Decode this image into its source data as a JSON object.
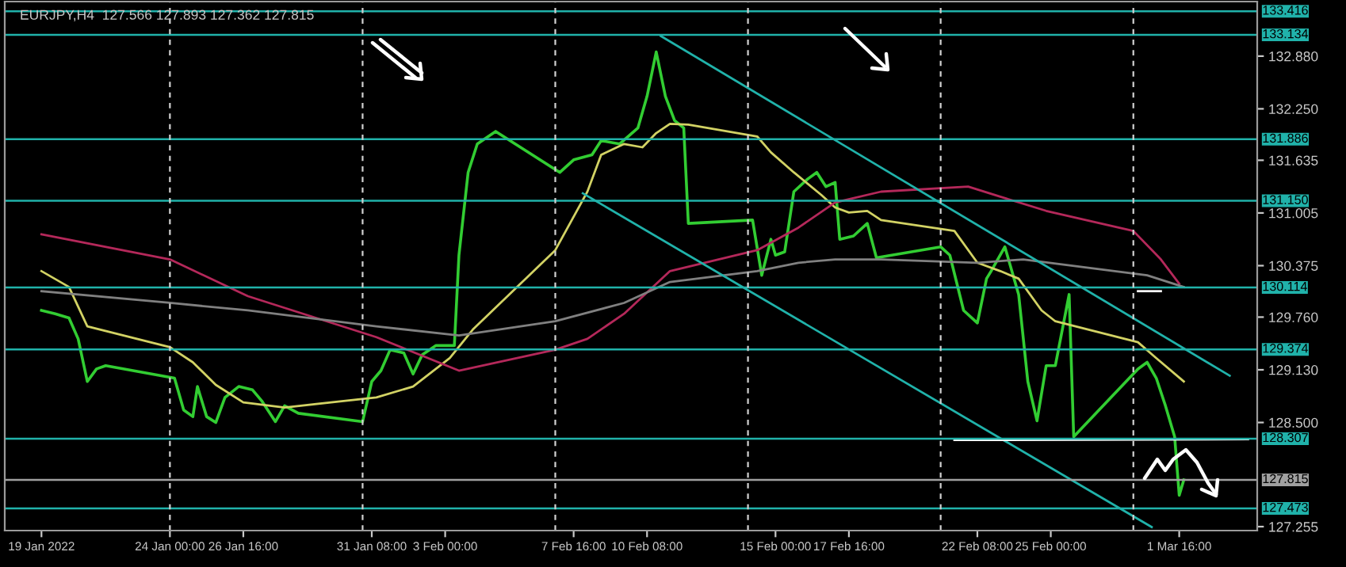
{
  "chart_data": {
    "type": "line",
    "title": "EURJPY,H4  127.566 127.893 127.362 127.815",
    "xlim": [
      "2022-01-18T00:00",
      "2022-03-04T12:00"
    ],
    "ylim": [
      127.208,
      133.532
    ],
    "xticks": [
      {
        "value": "2022-01-19T08:00",
        "label": "19 Jan 2022"
      },
      {
        "value": "2022-01-24T00:00",
        "label": "24 Jan 00:00"
      },
      {
        "value": "2022-01-26T16:00",
        "label": "26 Jan 16:00"
      },
      {
        "value": "2022-01-31T08:00",
        "label": "31 Jan 08:00"
      },
      {
        "value": "2022-02-03T00:00",
        "label": "3 Feb 00:00"
      },
      {
        "value": "2022-02-07T16:00",
        "label": "7 Feb 16:00"
      },
      {
        "value": "2022-02-10T08:00",
        "label": "10 Feb 08:00"
      },
      {
        "value": "2022-02-15T00:00",
        "label": "15 Feb 00:00"
      },
      {
        "value": "2022-02-17T16:00",
        "label": "17 Feb 16:00"
      },
      {
        "value": "2022-02-22T08:00",
        "label": "22 Feb 08:00"
      },
      {
        "value": "2022-02-25T00:00",
        "label": "25 Feb 00:00"
      },
      {
        "value": "2022-03-01T16:00",
        "label": "1 Mar 16:00"
      }
    ],
    "yticks": [
      {
        "value": 132.88,
        "label": "132.880"
      },
      {
        "value": 132.25,
        "label": "132.250"
      },
      {
        "value": 131.635,
        "label": "131.635"
      },
      {
        "value": 131.005,
        "label": "131.005"
      },
      {
        "value": 130.375,
        "label": "130.375"
      },
      {
        "value": 129.76,
        "label": "129.760"
      },
      {
        "value": 129.13,
        "label": "129.130"
      },
      {
        "value": 128.5,
        "label": "128.500"
      },
      {
        "value": 127.255,
        "label": "127.255"
      }
    ],
    "marker": "none",
    "series": [
      {
        "color": "#32cd32",
        "x": [
          "2022-01-19T08:00",
          "2022-01-19T20:00",
          "2022-01-20T08:00",
          "2022-01-20T16:00",
          "2022-01-21T00:00",
          "2022-01-21T08:00",
          "2022-01-21T16:00",
          "2022-01-24T04:00",
          "2022-01-24T12:00",
          "2022-01-24T20:00",
          "2022-01-25T00:00",
          "2022-01-25T08:00",
          "2022-01-25T16:00",
          "2022-01-26T00:00",
          "2022-01-26T12:00",
          "2022-01-27T00:00",
          "2022-01-27T08:00",
          "2022-01-27T20:00",
          "2022-01-28T04:00",
          "2022-01-28T16:00",
          "2022-01-31T00:00",
          "2022-01-31T08:00",
          "2022-01-31T16:00",
          "2022-02-01T00:00",
          "2022-02-01T12:00",
          "2022-02-01T20:00",
          "2022-02-02T04:00",
          "2022-02-02T16:00",
          "2022-02-03T08:00",
          "2022-02-03T12:00",
          "2022-02-03T20:00",
          "2022-02-04T04:00",
          "2022-02-04T20:00",
          "2022-02-07T04:00",
          "2022-02-07T16:00",
          "2022-02-08T08:00",
          "2022-02-08T16:00",
          "2022-02-09T08:00",
          "2022-02-10T00:00",
          "2022-02-10T08:00",
          "2022-02-10T16:00",
          "2022-02-11T00:00",
          "2022-02-11T08:00",
          "2022-02-11T16:00",
          "2022-02-11T20:00",
          "2022-02-14T04:00",
          "2022-02-14T12:00",
          "2022-02-14T20:00",
          "2022-02-15T00:00",
          "2022-02-15T08:00",
          "2022-02-15T16:00",
          "2022-02-16T04:00",
          "2022-02-16T12:00",
          "2022-02-16T20:00",
          "2022-02-17T04:00",
          "2022-02-17T08:00",
          "2022-02-17T20:00",
          "2022-02-18T08:00",
          "2022-02-18T16:00",
          "2022-02-21T00:00",
          "2022-02-21T08:00",
          "2022-02-21T20:00",
          "2022-02-22T08:00",
          "2022-02-22T16:00",
          "2022-02-22T20:00",
          "2022-02-23T08:00",
          "2022-02-23T20:00",
          "2022-02-24T04:00",
          "2022-02-24T12:00",
          "2022-02-24T20:00",
          "2022-02-25T04:00",
          "2022-02-25T16:00",
          "2022-02-25T20:00",
          "2022-02-28T04:00",
          "2022-02-28T12:00",
          "2022-02-28T20:00",
          "2022-03-01T04:00",
          "2022-03-01T12:00",
          "2022-03-01T16:00",
          "2022-03-01T20:00"
        ],
        "values": [
          129.84,
          129.8,
          129.75,
          129.5,
          128.99,
          129.14,
          129.18,
          129.03,
          128.65,
          128.57,
          128.93,
          128.57,
          128.5,
          128.8,
          128.93,
          128.89,
          128.76,
          128.51,
          128.7,
          128.61,
          128.51,
          128.99,
          129.12,
          129.37,
          129.33,
          129.08,
          129.31,
          129.42,
          129.42,
          130.5,
          131.49,
          131.83,
          131.98,
          131.49,
          131.64,
          131.7,
          131.87,
          131.83,
          132.02,
          132.4,
          132.93,
          132.4,
          132.11,
          132.02,
          130.88,
          130.92,
          130.26,
          130.69,
          130.5,
          130.54,
          131.26,
          131.41,
          131.49,
          131.32,
          131.37,
          130.69,
          130.73,
          130.88,
          130.47,
          130.6,
          130.5,
          129.84,
          129.69,
          130.22,
          130.31,
          130.6,
          130.03,
          128.99,
          128.52,
          129.18,
          129.18,
          130.03,
          128.33,
          129.14,
          129.22,
          129.03,
          128.7,
          128.33,
          127.63,
          127.815
        ]
      },
      {
        "color": "#d2d264",
        "x": [
          "2022-01-19T08:00",
          "2022-01-20T08:00",
          "2022-01-21T00:00",
          "2022-01-24T00:00",
          "2022-01-24T20:00",
          "2022-01-25T16:00",
          "2022-01-26T16:00",
          "2022-01-28T04:00",
          "2022-01-31T12:00",
          "2022-02-01T20:00",
          "2022-02-03T04:00",
          "2022-02-04T00:00",
          "2022-02-07T00:00",
          "2022-02-08T04:00",
          "2022-02-08T16:00",
          "2022-02-09T12:00",
          "2022-02-10T04:00",
          "2022-02-10T16:00",
          "2022-02-11T04:00",
          "2022-02-11T20:00",
          "2022-02-14T08:00",
          "2022-02-14T20:00",
          "2022-02-15T16:00",
          "2022-02-16T16:00",
          "2022-02-17T04:00",
          "2022-02-17T16:00",
          "2022-02-18T08:00",
          "2022-02-18T20:00",
          "2022-02-21T12:00",
          "2022-02-22T08:00",
          "2022-02-23T04:00",
          "2022-02-23T20:00",
          "2022-02-24T16:00",
          "2022-02-25T04:00",
          "2022-02-28T04:00",
          "2022-02-28T20:00",
          "2022-03-01T20:00"
        ],
        "values": [
          130.31,
          130.12,
          129.65,
          129.4,
          129.22,
          128.95,
          128.74,
          128.68,
          128.8,
          128.93,
          129.27,
          129.61,
          130.56,
          131.26,
          131.7,
          131.83,
          131.79,
          131.96,
          132.07,
          132.06,
          131.92,
          131.73,
          131.49,
          131.22,
          131.07,
          131.01,
          131.03,
          130.92,
          130.79,
          130.41,
          130.31,
          130.22,
          129.84,
          129.71,
          129.46,
          129.27,
          128.99
        ]
      },
      {
        "color": "#b4285a",
        "x": [
          "2022-01-19T08:00",
          "2022-01-24T00:00",
          "2022-01-26T20:00",
          "2022-01-31T12:00",
          "2022-02-03T12:00",
          "2022-02-07T00:00",
          "2022-02-08T04:00",
          "2022-02-09T12:00",
          "2022-02-11T04:00",
          "2022-02-14T08:00",
          "2022-02-15T20:00",
          "2022-02-17T04:00",
          "2022-02-18T20:00",
          "2022-02-22T00:00",
          "2022-02-23T04:00",
          "2022-02-24T20:00",
          "2022-02-28T00:00",
          "2022-03-01T00:00",
          "2022-03-01T16:00"
        ],
        "values": [
          130.75,
          130.45,
          130.01,
          129.52,
          129.12,
          129.37,
          129.5,
          129.8,
          130.31,
          130.56,
          130.83,
          131.13,
          131.26,
          131.32,
          131.2,
          131.03,
          130.79,
          130.45,
          130.16
        ]
      },
      {
        "color": "#808080",
        "x": [
          "2022-01-19T08:00",
          "2022-01-24T00:00",
          "2022-01-26T20:00",
          "2022-01-31T12:00",
          "2022-02-03T12:00",
          "2022-02-07T00:00",
          "2022-02-09T12:00",
          "2022-02-11T04:00",
          "2022-02-14T08:00",
          "2022-02-15T20:00",
          "2022-02-17T04:00",
          "2022-02-18T20:00",
          "2022-02-22T08:00",
          "2022-02-24T00:00",
          "2022-02-28T12:00",
          "2022-03-01T20:00"
        ],
        "values": [
          130.07,
          129.93,
          129.84,
          129.65,
          129.54,
          129.71,
          129.93,
          130.18,
          130.31,
          130.41,
          130.45,
          130.45,
          130.41,
          130.45,
          130.26,
          130.12
        ]
      },
      {
        "color": "#20b2aa",
        "x": [
          "2022-02-10T20:00",
          "2022-03-03T12:00"
        ],
        "values": [
          133.12,
          129.06
        ]
      },
      {
        "color": "#20b2aa",
        "x": [
          "2022-02-08T00:00",
          "2022-02-28T16:00"
        ],
        "values": [
          131.24,
          127.25
        ]
      },
      {
        "color": "#ffffff",
        "x": [
          "2022-02-21T12:00",
          "2022-03-04T04:00"
        ],
        "values": [
          128.29,
          128.3
        ]
      },
      {
        "color": "#ffffff",
        "x": [
          "2022-02-28T04:00",
          "2022-03-01T00:00"
        ],
        "values": [
          130.07,
          130.07
        ]
      }
    ],
    "ref_lines": [
      {
        "axis": "y",
        "value": 133.416,
        "label": "133.416",
        "color": "#20b2aa"
      },
      {
        "axis": "y",
        "value": 133.134,
        "label": "133.134",
        "color": "#20b2aa"
      },
      {
        "axis": "y",
        "value": 131.886,
        "label": "131.886",
        "color": "#20b2aa"
      },
      {
        "axis": "y",
        "value": 131.15,
        "label": "131.150",
        "color": "#20b2aa"
      },
      {
        "axis": "y",
        "value": 130.114,
        "label": "130.114",
        "color": "#20b2aa"
      },
      {
        "axis": "y",
        "value": 129.374,
        "label": "129.374",
        "color": "#20b2aa"
      },
      {
        "axis": "y",
        "value": 128.307,
        "label": "128.307",
        "color": "#20b2aa"
      },
      {
        "axis": "y",
        "value": 127.815,
        "label": "127.815",
        "color": "#a0a0a0"
      },
      {
        "axis": "y",
        "value": 127.473,
        "label": "127.473",
        "color": "#20b2aa"
      },
      {
        "axis": "x",
        "value": "2022-01-24T00:00",
        "color": "#d0d0d0",
        "line_style": "dashed"
      },
      {
        "axis": "x",
        "value": "2022-01-31T00:00",
        "color": "#d0d0d0",
        "line_style": "dashed"
      },
      {
        "axis": "x",
        "value": "2022-02-07T00:00",
        "color": "#d0d0d0",
        "line_style": "dashed"
      },
      {
        "axis": "x",
        "value": "2022-02-14T00:00",
        "color": "#d0d0d0",
        "line_style": "dashed"
      },
      {
        "axis": "x",
        "value": "2022-02-21T00:00",
        "color": "#d0d0d0",
        "line_style": "dashed"
      },
      {
        "axis": "x",
        "value": "2022-02-28T00:00",
        "color": "#d0d0d0",
        "line_style": "dashed"
      }
    ]
  }
}
